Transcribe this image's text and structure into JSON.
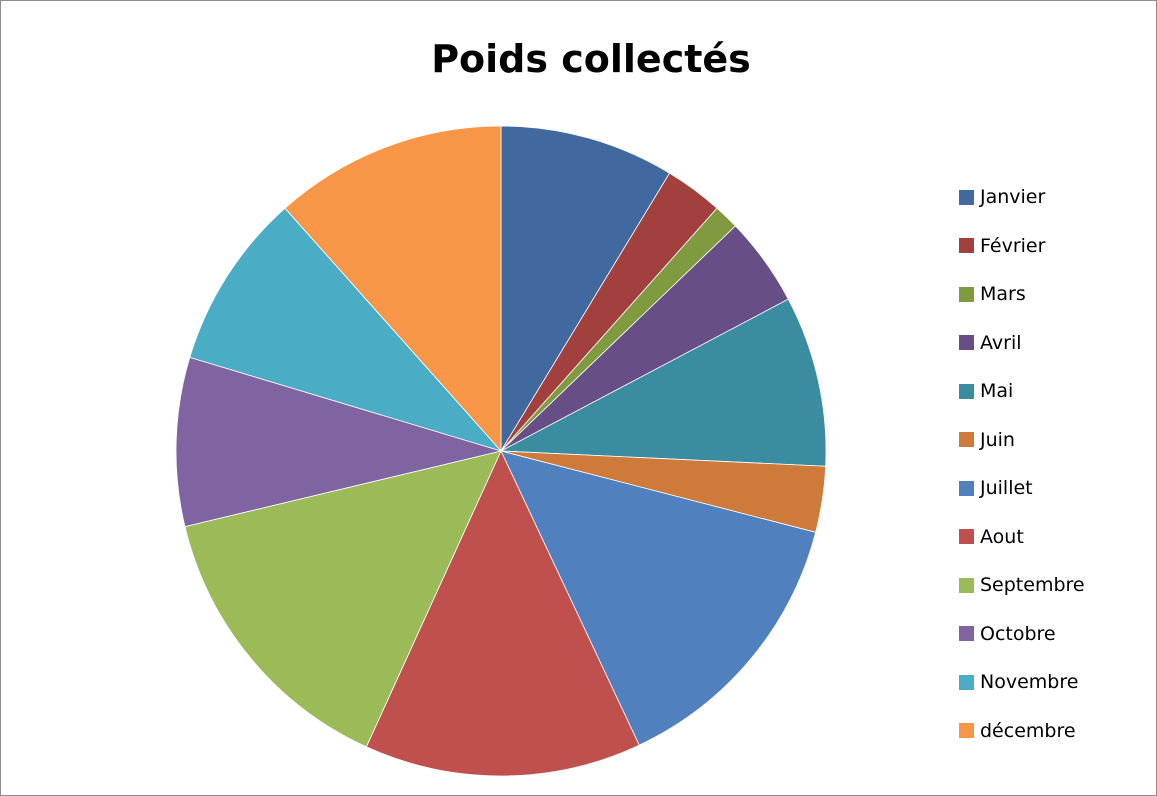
{
  "chart_data": {
    "type": "pie",
    "title": "Poids collectés",
    "categories": [
      "Janvier",
      "Février",
      "Mars",
      "Avril",
      "Mai",
      "Juin",
      "Juillet",
      "Aout",
      "Septembre",
      "Octobre",
      "Novembre",
      "décembre"
    ],
    "values": [
      9.0,
      3.0,
      1.3,
      4.6,
      8.8,
      3.4,
      14.5,
      14.3,
      15.0,
      8.7,
      9.1,
      12.0
    ],
    "colors": [
      "#4169A0",
      "#A2403E",
      "#7F9A3F",
      "#674E86",
      "#3A8CA1",
      "#CD7A3A",
      "#5081BE",
      "#C0504D",
      "#9BBB59",
      "#8064A2",
      "#4BACC6",
      "#F79646"
    ],
    "start_angle_deg": 0,
    "direction": "clockwise",
    "legend_position": "right"
  }
}
